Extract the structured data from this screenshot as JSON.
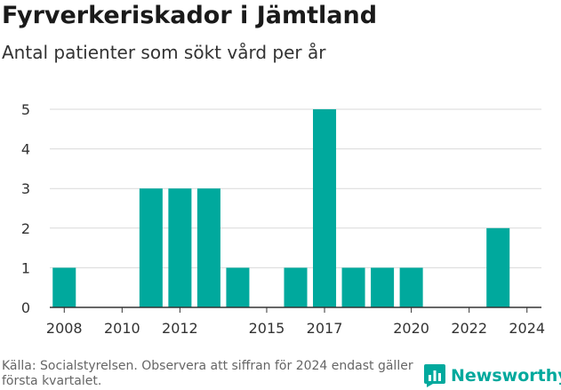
{
  "title": "Fyrverkeriskador i Jämtland",
  "subtitle": "Antal patienter som sökt vård per år",
  "source": "Källa: Socialstyrelsen. Observera att siffran för 2024 endast gäller första kvartalet.",
  "brand": {
    "name": "Newsworthy",
    "icon": "bar-chart-icon"
  },
  "colors": {
    "bar": "#00a99d",
    "grid": "#d9d9d9",
    "axis": "#333333",
    "text": "#333333"
  },
  "chart_data": {
    "type": "bar",
    "title": "Fyrverkeriskador i Jämtland",
    "subtitle": "Antal patienter som sökt vård per år",
    "x": [
      2008,
      2009,
      2010,
      2011,
      2012,
      2013,
      2014,
      2015,
      2016,
      2017,
      2018,
      2019,
      2020,
      2021,
      2022,
      2023,
      2024
    ],
    "values": [
      1,
      0,
      0,
      3,
      3,
      3,
      1,
      0,
      1,
      5,
      1,
      1,
      1,
      0,
      0,
      2,
      0
    ],
    "xticks": [
      2008,
      2010,
      2012,
      2015,
      2017,
      2020,
      2022,
      2024
    ],
    "yticks": [
      0,
      1,
      2,
      3,
      4,
      5
    ],
    "ylim": [
      0,
      5
    ],
    "xlabel": "",
    "ylabel": "",
    "grid": true
  }
}
